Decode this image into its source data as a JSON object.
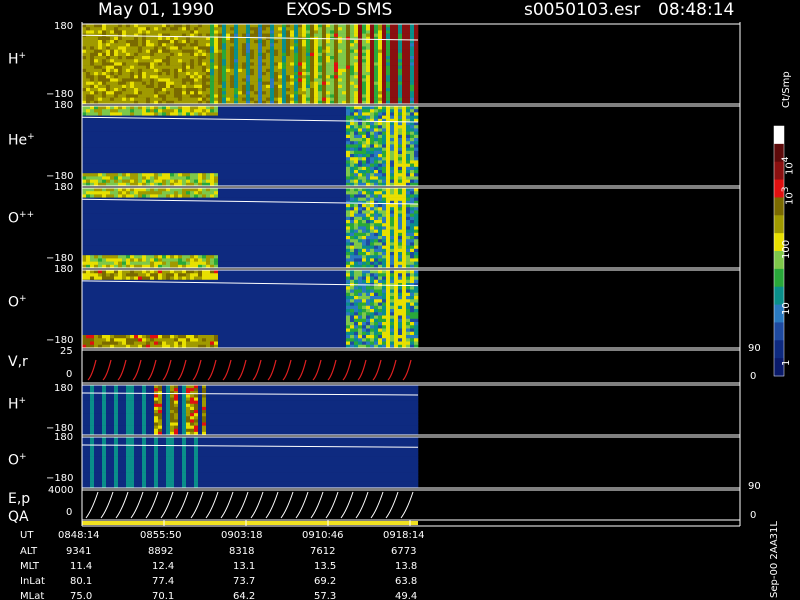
{
  "header": {
    "date": "May 01, 1990",
    "instrument": "EXOS-D SMS",
    "file": "s0050103.esr",
    "time": "08:48:14"
  },
  "colorbar": {
    "unit": "Ct/Smp",
    "ticks": [
      {
        "base": "10",
        "exp": "4"
      },
      {
        "base": "10",
        "exp": "3"
      },
      {
        "base": "100",
        "exp": ""
      },
      {
        "base": "10",
        "exp": ""
      },
      {
        "base": "1",
        "exp": ""
      }
    ],
    "colors": [
      "#ffffff",
      "#5c0a0a",
      "#8a1010",
      "#e01010",
      "#7a6a00",
      "#a09a00",
      "#e8e000",
      "#7ec84a",
      "#29a83a",
      "#0a8f8a",
      "#2a7ac0",
      "#1e4aa0",
      "#0e2a80",
      "#0a1a6a"
    ]
  },
  "panels": [
    {
      "label": "H",
      "sup": "+",
      "ymax": "180",
      "ymin": "−180"
    },
    {
      "label": "He",
      "sup": "+",
      "ymax": "180",
      "ymin": "−180"
    },
    {
      "label": "O",
      "sup": "++",
      "ymax": "180",
      "ymin": "−180"
    },
    {
      "label": "O",
      "sup": "+",
      "ymax": "180",
      "ymin": "−180"
    },
    {
      "label": "V,r",
      "sup": "",
      "ymax": "25",
      "ymin": "0",
      "right_top": "90",
      "right_bottom": "0"
    },
    {
      "label": "H",
      "sup": "+",
      "ymax": "180",
      "ymin": "−180"
    },
    {
      "label": "O",
      "sup": "+",
      "ymax": "180",
      "ymin": "−180"
    },
    {
      "label": "E,p",
      "sup": "",
      "ymax": "4000",
      "ymin": "0",
      "right_top": "90",
      "right_bottom": "0"
    }
  ],
  "qa_label": "QA",
  "footer": {
    "row_labels": [
      "UT",
      "ALT",
      "MLT",
      "InLat",
      "MLat"
    ],
    "columns": [
      {
        "UT": "0848:14",
        "ALT": "9341",
        "MLT": "11.4",
        "InLat": "80.1",
        "MLat": "75.0"
      },
      {
        "UT": "0855:50",
        "ALT": "8892",
        "MLT": "12.4",
        "InLat": "77.4",
        "MLat": "70.1"
      },
      {
        "UT": "0903:18",
        "ALT": "8318",
        "MLT": "13.1",
        "InLat": "73.7",
        "MLat": "64.2"
      },
      {
        "UT": "0910:46",
        "ALT": "7612",
        "MLT": "13.5",
        "InLat": "69.2",
        "MLat": "57.3"
      },
      {
        "UT": "0918:14",
        "ALT": "6773",
        "MLT": "13.8",
        "InLat": "63.8",
        "MLat": "49.4"
      }
    ],
    "side_stamp": "Sep-00 2AA31L"
  },
  "chart_data": {
    "type": "heatmap",
    "x": [
      "0848:14",
      "0855:50",
      "0903:18",
      "0910:46",
      "0918:14"
    ],
    "xlabel": "UT",
    "colorscale": {
      "label": "Ct/Smp",
      "scale": "log",
      "range": [
        1,
        10000
      ]
    },
    "panels": [
      {
        "name": "H+",
        "ylim": [
          -180,
          180
        ]
      },
      {
        "name": "He+",
        "ylim": [
          -180,
          180
        ]
      },
      {
        "name": "O++",
        "ylim": [
          -180,
          180
        ]
      },
      {
        "name": "O+",
        "ylim": [
          -180,
          180
        ]
      },
      {
        "name": "V,r",
        "ylim": [
          0,
          25
        ],
        "y2lim": [
          0,
          90
        ]
      },
      {
        "name": "H+",
        "ylim": [
          -180,
          180
        ]
      },
      {
        "name": "O+",
        "ylim": [
          -180,
          180
        ]
      },
      {
        "name": "E,p",
        "ylim": [
          0,
          4000
        ],
        "y2lim": [
          0,
          90
        ]
      }
    ],
    "grid": false
  }
}
